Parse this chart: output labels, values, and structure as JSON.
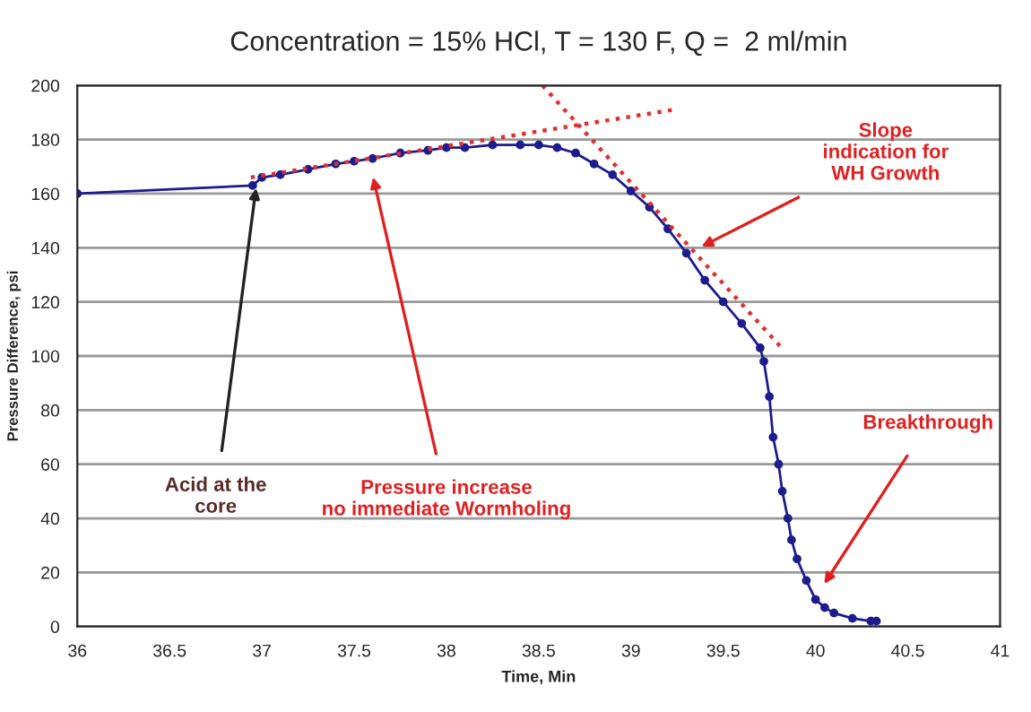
{
  "chart_data": {
    "type": "line",
    "title": "Concentration = 15% HCl, T = 130 F, Q =  2 ml/min",
    "xlabel": "Time, Min",
    "ylabel": "Pressure Difference, psi",
    "xlim": [
      36,
      41
    ],
    "xticks": [
      36,
      36.5,
      37,
      37.5,
      38,
      38.5,
      39,
      39.5,
      40,
      40.5,
      41
    ],
    "ylim": [
      0,
      200
    ],
    "yticks": [
      0,
      20,
      40,
      60,
      80,
      100,
      120,
      140,
      160,
      180,
      200
    ],
    "grid": "y",
    "legend": false,
    "series": [
      {
        "color": "#1c1c8c",
        "marker": "circle",
        "line_style": "solid",
        "x": [
          36.0,
          36.95,
          37.0,
          37.1,
          37.25,
          37.4,
          37.5,
          37.6,
          37.75,
          37.9,
          38.0,
          38.1,
          38.25,
          38.4,
          38.5,
          38.6,
          38.7,
          38.8,
          38.9,
          39.0,
          39.1,
          39.2,
          39.3,
          39.4,
          39.5,
          39.6,
          39.7,
          39.72,
          39.75,
          39.77,
          39.8,
          39.82,
          39.85,
          39.87,
          39.9,
          39.95,
          40.0,
          40.05,
          40.1,
          40.2,
          40.3,
          40.33
        ],
        "values": [
          160,
          163,
          166,
          167,
          169,
          171,
          172,
          173,
          175,
          176,
          177,
          177,
          178,
          178,
          178,
          177,
          175,
          171,
          167,
          161,
          155,
          147,
          138,
          128,
          120,
          112,
          103,
          98,
          85,
          70,
          60,
          50,
          40,
          32,
          25,
          17,
          10,
          7,
          5,
          3,
          2,
          2
        ]
      },
      {
        "color": "#e03030",
        "marker": "none",
        "line_style": "dotted",
        "x": [
          36.94,
          39.23
        ],
        "values": [
          166,
          191
        ]
      },
      {
        "color": "#e03030",
        "marker": "none",
        "line_style": "dotted",
        "x": [
          38.52,
          39.83
        ],
        "values": [
          200,
          102
        ]
      }
    ],
    "annotations": [
      "Acid at the\ncore",
      "Pressure increase\nno immediate Wormholing",
      "Slope\nindication for\nWH Growth",
      "Breakthrough"
    ]
  }
}
